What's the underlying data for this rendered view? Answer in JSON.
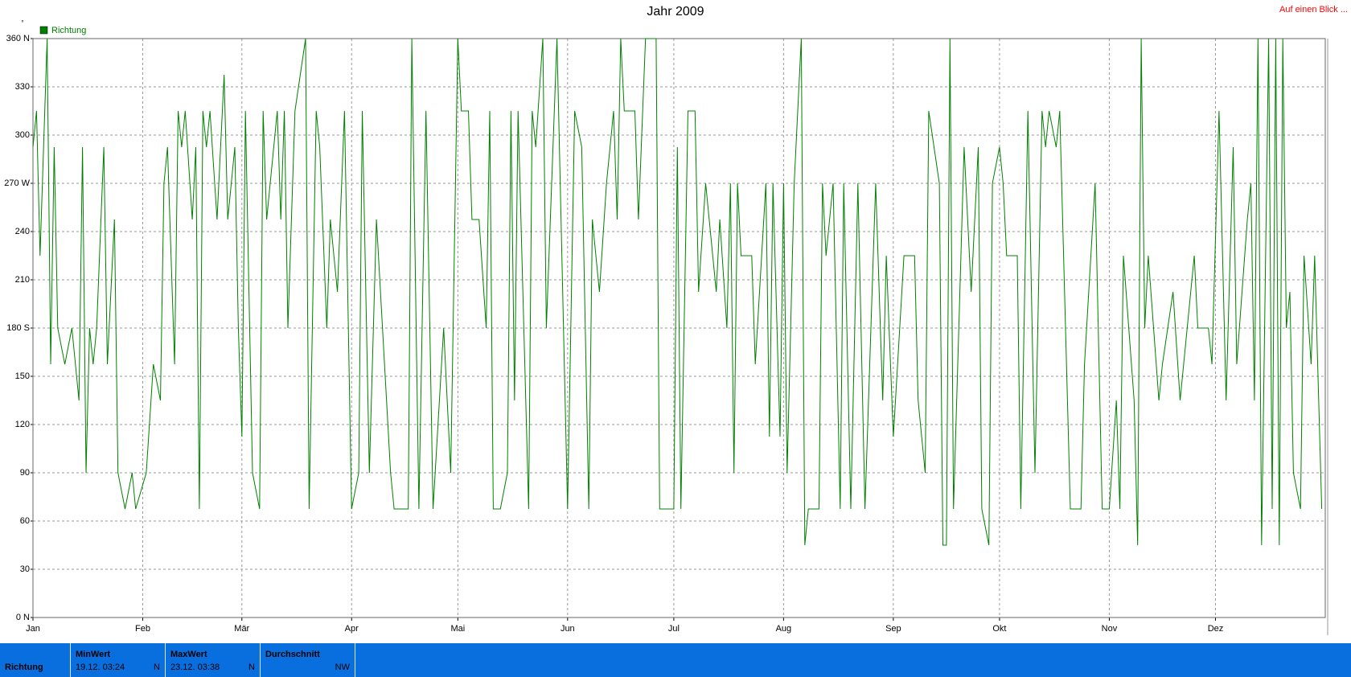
{
  "header_link": "Auf einen Blick ...",
  "chart_data": {
    "type": "line",
    "title": "Jahr 2009",
    "y_unit": "°",
    "x": [
      0,
      1,
      2,
      4,
      5,
      6,
      7,
      9,
      11,
      13,
      14,
      15,
      16,
      17,
      18,
      20,
      21,
      23,
      24,
      26,
      28,
      29,
      32,
      34,
      36,
      37,
      38,
      40,
      41,
      42,
      43,
      45,
      46,
      47,
      48,
      49,
      50,
      52,
      54,
      55,
      57,
      58,
      59,
      60,
      62,
      64,
      65,
      66,
      69,
      70,
      71,
      72,
      74,
      77,
      78,
      80,
      81,
      83,
      84,
      86,
      88,
      90,
      92,
      93,
      95,
      97,
      101,
      102,
      106,
      107,
      109,
      111,
      113,
      116,
      118,
      120,
      121,
      123,
      124,
      126,
      128,
      129,
      130,
      132,
      134,
      135,
      136,
      137,
      140,
      141,
      142,
      144,
      145,
      148,
      151,
      153,
      155,
      157,
      158,
      160,
      162,
      164,
      165,
      166,
      167,
      170,
      171,
      173,
      176,
      177,
      181,
      182,
      183,
      185,
      187,
      188,
      190,
      191,
      193,
      194,
      196,
      197,
      198,
      199,
      200,
      203,
      204,
      207,
      208,
      209,
      211,
      212,
      213,
      215,
      217,
      218,
      219,
      222,
      223,
      224,
      226,
      228,
      229,
      231,
      233,
      235,
      238,
      240,
      241,
      243,
      246,
      249,
      250,
      252,
      253,
      256,
      257,
      258,
      259,
      260,
      263,
      265,
      267,
      268,
      270,
      271,
      273,
      274,
      275,
      278,
      279,
      281,
      283,
      285,
      286,
      287,
      289,
      290,
      293,
      296,
      297,
      300,
      302,
      304,
      306,
      307,
      308,
      311,
      312,
      313,
      314,
      315,
      318,
      319,
      322,
      324,
      325,
      328,
      329,
      332,
      333,
      335,
      337,
      339,
      340,
      343,
      344,
      345,
      346,
      347,
      349,
      350,
      351,
      352,
      353,
      354,
      355,
      356,
      358,
      359,
      361,
      362,
      364
    ],
    "series": [
      {
        "name": "Richtung",
        "color": "#008000",
        "values": [
          292.5,
          315,
          225,
          360,
          157.5,
          292.5,
          180,
          157.5,
          180,
          135,
          292.5,
          90,
          180,
          157.5,
          180,
          292.5,
          157.5,
          247.5,
          90,
          67.5,
          90,
          67.5,
          90,
          157.5,
          135,
          270,
          292.5,
          157.5,
          315,
          292.5,
          315,
          247.5,
          292.5,
          67.5,
          315,
          292.5,
          315,
          247.5,
          337.5,
          247.5,
          292.5,
          180,
          112.5,
          315,
          90,
          67.5,
          315,
          247.5,
          315,
          247.5,
          315,
          180,
          315,
          360,
          67.5,
          315,
          292.5,
          180,
          247.5,
          202.5,
          315,
          67.5,
          90,
          315,
          90,
          247.5,
          90,
          67.5,
          67.5,
          360,
          67.5,
          315,
          67.5,
          180,
          90,
          360,
          315,
          315,
          247.5,
          247.5,
          180,
          315,
          67.5,
          67.5,
          90,
          315,
          135,
          315,
          67.5,
          315,
          292.5,
          360,
          180,
          360,
          67.5,
          315,
          292.5,
          67.5,
          247.5,
          202.5,
          270,
          315,
          247.5,
          360,
          315,
          315,
          247.5,
          360,
          360,
          67.5,
          67.5,
          292.5,
          67.5,
          315,
          315,
          202.5,
          270,
          247.5,
          202.5,
          247.5,
          180,
          270,
          90,
          270,
          225,
          225,
          157.5,
          270,
          112.5,
          270,
          112.5,
          270,
          90,
          270,
          360,
          45,
          67.5,
          67.5,
          270,
          225,
          270,
          67.5,
          270,
          67.5,
          270,
          67.5,
          270,
          135,
          225,
          112.5,
          225,
          225,
          135,
          90,
          315,
          270,
          45,
          45,
          360,
          67.5,
          292.5,
          202.5,
          292.5,
          67.5,
          45,
          270,
          292.5,
          270,
          225,
          225,
          67.5,
          315,
          90,
          315,
          292.5,
          315,
          292.5,
          315,
          67.5,
          67.5,
          157.5,
          270,
          67.5,
          67.5,
          135,
          67.5,
          225,
          135,
          45,
          360,
          180,
          225,
          135,
          157.5,
          202.5,
          135,
          157.5,
          225,
          180,
          180,
          157.5,
          315,
          135,
          292.5,
          157.5,
          247.5,
          270,
          135,
          360,
          45,
          360,
          67.5,
          360,
          45,
          360,
          180,
          202.5,
          90,
          67.5,
          225,
          157.5,
          225,
          67.5
        ]
      }
    ],
    "xlim": [
      0,
      365
    ],
    "xticks": [
      {
        "value": 0,
        "label": "Jan"
      },
      {
        "value": 31,
        "label": "Feb"
      },
      {
        "value": 59,
        "label": "Mär"
      },
      {
        "value": 90,
        "label": "Apr"
      },
      {
        "value": 120,
        "label": "Mai"
      },
      {
        "value": 151,
        "label": "Jun"
      },
      {
        "value": 181,
        "label": "Jul"
      },
      {
        "value": 212,
        "label": "Aug"
      },
      {
        "value": 243,
        "label": "Sep"
      },
      {
        "value": 273,
        "label": "Okt"
      },
      {
        "value": 304,
        "label": "Nov"
      },
      {
        "value": 334,
        "label": "Dez"
      }
    ],
    "ylim": [
      0,
      360
    ],
    "yticks": [
      {
        "value": 0,
        "label": "0 N"
      },
      30,
      60,
      90,
      120,
      150,
      {
        "value": 180,
        "label": "180 S"
      },
      210,
      240,
      {
        "value": 270,
        "label": "270 W"
      },
      300,
      330,
      {
        "value": 360,
        "label": "360 N"
      }
    ],
    "grid": true
  },
  "summary_table": {
    "row_label": "Richtung",
    "columns": [
      {
        "header": "MinWert",
        "date": "19.12.  03:24",
        "direction": "N"
      },
      {
        "header": "MaxWert",
        "date": "23.12.  03:38",
        "direction": "N"
      },
      {
        "header": "Durchschnitt",
        "direction": "NW"
      }
    ]
  }
}
